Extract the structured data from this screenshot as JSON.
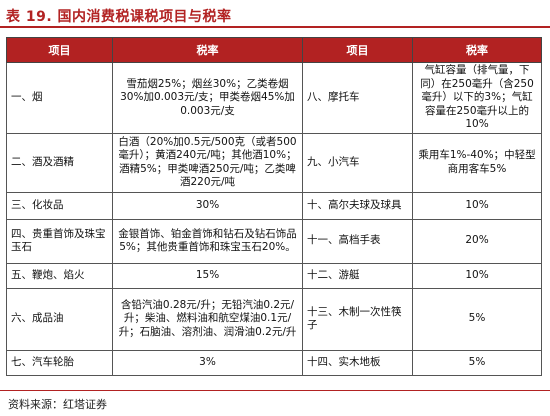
{
  "title": "表 19. 国内消费税课税项目与税率",
  "header": {
    "item": "项目",
    "rate": "税率",
    "item2": "项目",
    "rate2": "税率"
  },
  "rows": [
    {
      "left_item": "一、烟",
      "left_rate": "雪茄烟25%；烟丝30%；乙类卷烟30%加0.003元/支；甲类卷烟45%加0.003元/支",
      "right_item": "八、摩托车",
      "right_rate": "气缸容量（排气量，下同）在250毫升（含250毫升）以下的3%；气缸容量在250毫升以上的10%"
    },
    {
      "left_item": "二、酒及酒精",
      "left_rate": "白酒（20%加0.5元/500克（或者500毫升）；黄酒240元/吨；其他酒10%；酒精5%；甲类啤酒250元/吨；乙类啤酒220元/吨",
      "right_item": "九、小汽车",
      "right_rate": "乘用车1%-40%；中轻型商用客车5%"
    },
    {
      "left_item": "三、化妆品",
      "left_rate": "30%",
      "right_item": "十、高尔夫球及球具",
      "right_rate": "10%"
    },
    {
      "left_item": "四、贵重首饰及珠宝玉石",
      "left_rate": "金银首饰、铂金首饰和钻石及钻石饰品5%；其他贵重首饰和珠宝玉石20%。",
      "right_item": "十一、高档手表",
      "right_rate": "20%"
    },
    {
      "left_item": "五、鞭炮、焰火",
      "left_rate": "15%",
      "right_item": "十二、游艇",
      "right_rate": "10%"
    },
    {
      "left_item": "六、成品油",
      "left_rate": "含铅汽油0.28元/升；无铅汽油0.2元/升；柴油、燃料油和航空煤油0.1元/升；石脑油、溶剂油、润滑油0.2元/升",
      "right_item": "十三、木制一次性筷子",
      "right_rate": "5%"
    },
    {
      "left_item": "七、汽车轮胎",
      "left_rate": "3%",
      "right_item": "十四、实木地板",
      "right_rate": "5%"
    }
  ],
  "source": "资料来源：红塔证券",
  "colors": {
    "accent": "#b22222"
  }
}
